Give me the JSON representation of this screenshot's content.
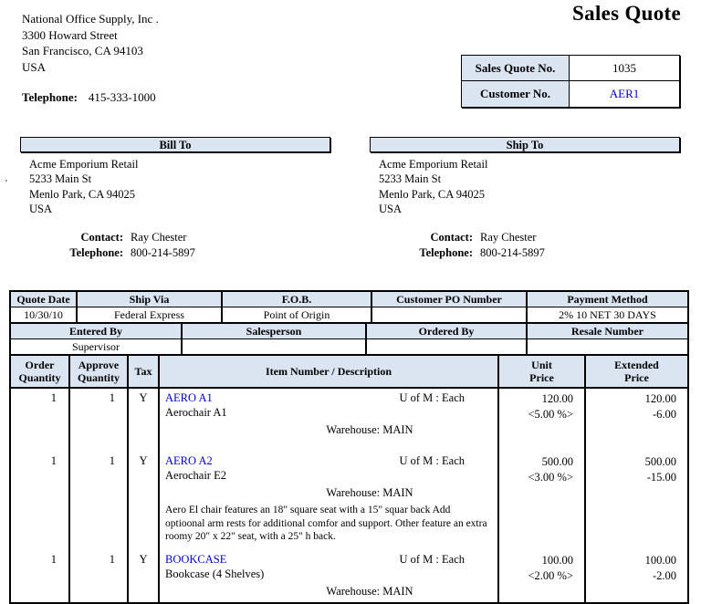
{
  "title": "Sales Quote",
  "company": {
    "name": "National Office Supply, Inc .",
    "address1": "3300  Howard Street",
    "address2": "San Francisco, CA 94103",
    "address3": "USA",
    "telephone_label": "Telephone:",
    "telephone": "415-333-1000"
  },
  "quote_info": {
    "no_label": "Sales Quote No.",
    "no_value": "1035",
    "customer_label": "Customer No.",
    "customer_value": "AER1"
  },
  "stray_mark": "'",
  "bill_to": {
    "header": "Bill To",
    "lines": [
      "Acme Emporium Retail",
      "5233  Main St",
      "Menlo Park, CA  94025",
      "USA"
    ],
    "contact_label": "Contact:",
    "contact": "Ray Chester",
    "telephone_label": "Telephone:",
    "telephone": "800-214-5897"
  },
  "ship_to": {
    "header": "Ship To",
    "lines": [
      "Acme Emporium Retail",
      "5233  Main St",
      "Menlo Park, CA  94025",
      "USA"
    ],
    "contact_label": "Contact:",
    "contact": "Ray Chester",
    "telephone_label": "Telephone:",
    "telephone": "800-214-5897"
  },
  "details": {
    "r1_headers": [
      "Quote Date",
      "Ship Via",
      "F.O.B.",
      "Customer PO Number",
      "Payment Method"
    ],
    "r1_values": [
      "10/30/10",
      "Federal Express",
      "Point of Origin",
      "",
      "2% 10 NET 30 DAYS"
    ],
    "r2_headers": [
      "Entered By",
      "Salesperson",
      "Ordered By",
      "Resale Number"
    ],
    "r2_values": [
      "Supervisor",
      "",
      "",
      ""
    ]
  },
  "items": {
    "headers": [
      [
        "Order",
        "Quantity"
      ],
      [
        "Approve",
        "Quantity"
      ],
      [
        "Tax"
      ],
      [
        "Item Number / Description"
      ],
      [
        "Unit",
        "Price"
      ],
      [
        "Extended",
        "Price"
      ]
    ],
    "rows": [
      {
        "order_qty": "1",
        "approve_qty": "1",
        "tax": "Y",
        "item_number": "AERO A1",
        "uom": "U of M : Each",
        "description": "Aerochair A1",
        "warehouse": "Warehouse: MAIN",
        "long_description": "",
        "unit_price": "120.00",
        "unit_discount": "<5.00 %>",
        "extended_price": "120.00",
        "extended_discount": "-6.00"
      },
      {
        "order_qty": "1",
        "approve_qty": "1",
        "tax": "Y",
        "item_number": "AERO A2",
        "uom": "U of M : Each",
        "description": "Aerochair E2",
        "warehouse": "Warehouse: MAIN",
        "long_description": "Aero El chair features an 18\" square seat with a 15\" squar back   Add optioonal arm rests for additional comfor and support.  Other feature an extra roomy 20\" x 22\" seat, with a 25\" h back.",
        "unit_price": "500.00",
        "unit_discount": "<3.00 %>",
        "extended_price": "500.00",
        "extended_discount": "-15.00"
      },
      {
        "order_qty": "1",
        "approve_qty": "1",
        "tax": "Y",
        "item_number": "BOOKCASE",
        "uom": "U of M : Each",
        "description": "Bookcase (4 Shelves)",
        "warehouse": "Warehouse: MAIN",
        "long_description": "",
        "unit_price": "100.00",
        "unit_discount": "<2.00 %>",
        "extended_price": "100.00",
        "extended_discount": "-2.00"
      }
    ]
  },
  "colors": {
    "header_bg": "#dbe5f1",
    "link": "#0000cc",
    "border": "#000000"
  }
}
